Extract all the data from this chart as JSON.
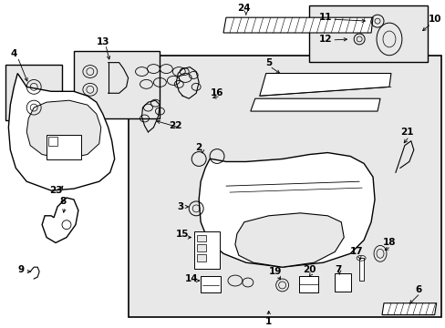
{
  "fig_width": 4.89,
  "fig_height": 3.6,
  "dpi": 100,
  "bg_color": "#ffffff",
  "diagram_bg": "#e8e8e8",
  "lc": "#000000",
  "fs_label": 7.5,
  "fs_small": 6.0
}
